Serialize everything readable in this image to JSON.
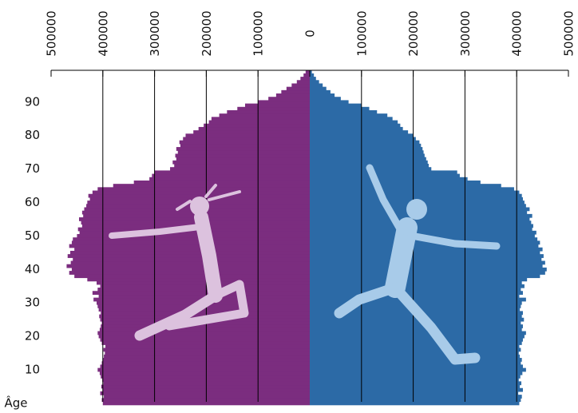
{
  "chart_data": {
    "type": "pyramid",
    "ylabel": "Âge",
    "y": [
      0,
      1,
      2,
      3,
      4,
      5,
      6,
      7,
      8,
      9,
      10,
      11,
      12,
      13,
      14,
      15,
      16,
      17,
      18,
      19,
      20,
      21,
      22,
      23,
      24,
      25,
      26,
      27,
      28,
      29,
      30,
      31,
      32,
      33,
      34,
      35,
      36,
      37,
      38,
      39,
      40,
      41,
      42,
      43,
      44,
      45,
      46,
      47,
      48,
      49,
      50,
      51,
      52,
      53,
      54,
      55,
      56,
      57,
      58,
      59,
      60,
      61,
      62,
      63,
      64,
      65,
      66,
      67,
      68,
      69,
      70,
      71,
      72,
      73,
      74,
      75,
      76,
      77,
      78,
      79,
      80,
      81,
      82,
      83,
      84,
      85,
      86,
      87,
      88,
      89,
      90,
      91,
      92,
      93,
      94,
      95,
      96,
      97,
      98,
      99
    ],
    "series": [
      {
        "color": "#7b2d7f",
        "values": [
          400000,
          402000,
          398000,
          405000,
          400000,
          403000,
          399000,
          401000,
          404000,
          406000,
          410000,
          405000,
          402000,
          400000,
          398000,
          396000,
          399000,
          395000,
          402000,
          405000,
          408000,
          410000,
          406000,
          404000,
          402000,
          405000,
          407000,
          404000,
          408000,
          410000,
          412000,
          418000,
          408000,
          420000,
          410000,
          405000,
          412000,
          430000,
          455000,
          465000,
          460000,
          470000,
          462000,
          458000,
          468000,
          463000,
          455000,
          465000,
          460000,
          458000,
          450000,
          445000,
          448000,
          440000,
          442000,
          446000,
          438000,
          440000,
          436000,
          432000,
          430000,
          425000,
          428000,
          420000,
          410000,
          380000,
          340000,
          310000,
          305000,
          300000,
          270000,
          262000,
          265000,
          258000,
          260000,
          255000,
          258000,
          250000,
          252000,
          245000,
          240000,
          225000,
          215000,
          205000,
          195000,
          190000,
          175000,
          160000,
          140000,
          125000,
          100000,
          80000,
          65000,
          55000,
          45000,
          35000,
          25000,
          18000,
          12000,
          8000
        ]
      },
      {
        "color": "#2c6aa6",
        "values": [
          405000,
          408000,
          410000,
          403000,
          412000,
          406000,
          409000,
          404000,
          407000,
          411000,
          418000,
          412000,
          408000,
          410000,
          406000,
          404000,
          408000,
          405000,
          410000,
          412000,
          415000,
          418000,
          410000,
          412000,
          408000,
          414000,
          410000,
          412000,
          406000,
          408000,
          410000,
          418000,
          405000,
          412000,
          408000,
          415000,
          410000,
          420000,
          445000,
          455000,
          458000,
          450000,
          455000,
          448000,
          452000,
          445000,
          450000,
          442000,
          445000,
          440000,
          435000,
          438000,
          430000,
          432000,
          428000,
          425000,
          430000,
          420000,
          425000,
          418000,
          415000,
          412000,
          410000,
          405000,
          395000,
          370000,
          330000,
          305000,
          290000,
          285000,
          235000,
          230000,
          228000,
          225000,
          222000,
          220000,
          218000,
          215000,
          212000,
          205000,
          200000,
          190000,
          180000,
          175000,
          170000,
          160000,
          150000,
          130000,
          115000,
          100000,
          75000,
          60000,
          48000,
          40000,
          32000,
          25000,
          18000,
          12000,
          8000,
          4000
        ]
      }
    ],
    "xlim": [
      0,
      500000
    ],
    "xticks": [
      0,
      100000,
      200000,
      300000,
      400000,
      500000
    ],
    "ylim": [
      -0.5,
      99.5
    ],
    "yticks": [
      10,
      20,
      30,
      40,
      50,
      60,
      70,
      80,
      90
    ],
    "grid": true
  }
}
